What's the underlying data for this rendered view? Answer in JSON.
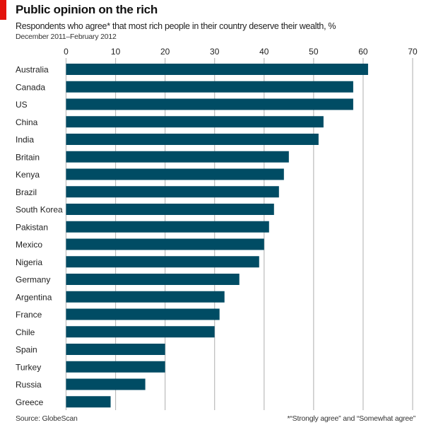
{
  "chart_data": {
    "type": "bar",
    "orientation": "horizontal",
    "title": "Public opinion on the rich",
    "subtitle": "Respondents who agree* that most rich people in their country deserve their wealth, %",
    "date_range": "December 2011–February 2012",
    "categories": [
      "Australia",
      "Canada",
      "US",
      "China",
      "India",
      "Britain",
      "Kenya",
      "Brazil",
      "South Korea",
      "Pakistan",
      "Mexico",
      "Nigeria",
      "Germany",
      "Argentina",
      "France",
      "Chile",
      "Spain",
      "Turkey",
      "Russia",
      "Greece"
    ],
    "values": [
      61,
      58,
      58,
      52,
      51,
      45,
      44,
      43,
      42,
      41,
      40,
      39,
      35,
      32,
      31,
      30,
      20,
      20,
      16,
      9
    ],
    "xlim": [
      0,
      70
    ],
    "xticks": [
      0,
      10,
      20,
      30,
      40,
      50,
      60,
      70
    ],
    "grid": true,
    "axis_position": "top",
    "source": "Source: GlobeScan",
    "footnote": "*“Strongly agree” and “Somewhat agree”",
    "colors": {
      "bar": "#004c64",
      "accent": "#e3120b",
      "grid": "#bbbbbb"
    }
  }
}
